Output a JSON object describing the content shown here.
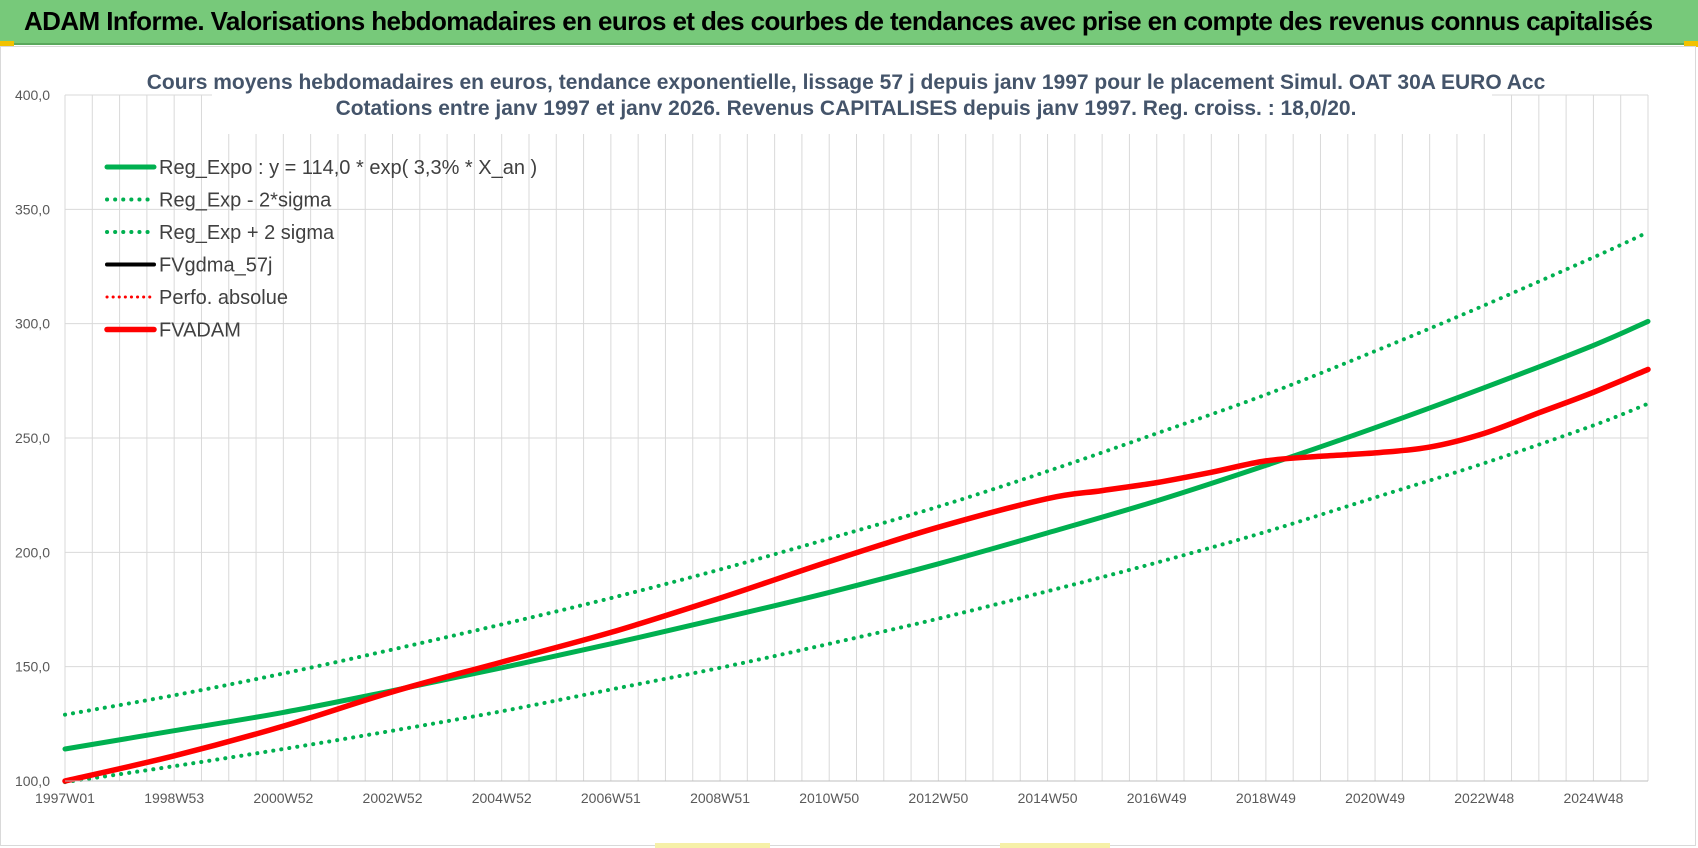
{
  "header": {
    "title": "ADAM Informe. Valorisations hebdomadaires en euros et des courbes de tendances avec prise en compte des revenus connus capitalisés"
  },
  "colors": {
    "banner": "#77c97a",
    "trend": "#00b050",
    "fvadam": "#ff0000",
    "fvgdma": "#000000",
    "grid": "#d9d9d9",
    "title_text": "#44546a"
  },
  "chart_data": {
    "type": "line",
    "title_line1": "Cours moyens hebdomadaires en euros, tendance exponentielle, lissage 57 j depuis janv 1997  pour le placement Simul. OAT 30A EURO Acc",
    "title_line2": "Cotations entre janv 1997 et janv 2026. Revenus  CAPITALISES depuis janv 1997. Reg. croiss. : 18,0/20.",
    "xlabel": "",
    "ylabel": "",
    "ylim": [
      100,
      400
    ],
    "xlim": [
      1997.0,
      2026.0
    ],
    "y_ticks": [
      "400,0",
      "350,0",
      "300,0",
      "250,0",
      "200,0",
      "150,0",
      "100,0"
    ],
    "y_tick_values": [
      400,
      350,
      300,
      250,
      200,
      150,
      100
    ],
    "x_ticks": [
      "1997W01",
      "1998W53",
      "2000W52",
      "2002W52",
      "2004W52",
      "2006W51",
      "2008W51",
      "2010W50",
      "2012W50",
      "2014W50",
      "2016W49",
      "2018W49",
      "2020W49",
      "2022W48",
      "2024W48"
    ],
    "x_tick_values": [
      1997.0,
      1999.0,
      2001.0,
      2003.0,
      2005.0,
      2007.0,
      2009.0,
      2011.0,
      2013.0,
      2015.0,
      2017.0,
      2019.0,
      2021.0,
      2023.0,
      2025.0
    ],
    "grid": true,
    "legend_position": "top-left",
    "series": [
      {
        "name": "Reg_Expo : y = 114,0 * exp( 3,3% *  X_an )",
        "style": "solid-green",
        "x": [
          1997,
          1999,
          2001,
          2003,
          2005,
          2007,
          2009,
          2011,
          2013,
          2015,
          2017,
          2019,
          2021,
          2023,
          2025,
          2026
        ],
        "values": [
          114,
          122,
          130,
          139.5,
          149.5,
          160,
          171,
          182.5,
          195,
          208.5,
          222.5,
          238,
          254.5,
          272,
          290.5,
          301
        ]
      },
      {
        "name": "Reg_Exp - 2*sigma",
        "style": "dotted-green",
        "x": [
          1997,
          1999,
          2001,
          2003,
          2005,
          2007,
          2009,
          2011,
          2013,
          2015,
          2017,
          2019,
          2021,
          2023,
          2025,
          2026
        ],
        "values": [
          99.5,
          106.5,
          114,
          122,
          130.5,
          140,
          149.5,
          160,
          171,
          183,
          195.5,
          209,
          224,
          239,
          255.5,
          265
        ]
      },
      {
        "name": "Reg_Exp + 2 sigma",
        "style": "dotted-green",
        "x": [
          1997,
          1999,
          2001,
          2003,
          2005,
          2007,
          2009,
          2011,
          2013,
          2015,
          2017,
          2019,
          2021,
          2023,
          2025,
          2026
        ],
        "values": [
          129,
          137.5,
          147,
          157.5,
          168.5,
          180,
          192.5,
          206,
          220,
          235.5,
          252,
          269,
          288,
          308,
          329,
          340
        ]
      },
      {
        "name": "FVgdma_57j",
        "style": "solid-black",
        "x": [],
        "values": []
      },
      {
        "name": "Perfo. absolue",
        "style": "dotted-red",
        "x": [],
        "values": []
      },
      {
        "name": "FVADAM",
        "style": "solid-red",
        "x": [
          1997,
          1999,
          2001,
          2003,
          2005,
          2007,
          2009,
          2011,
          2013,
          2015,
          2016,
          2017,
          2018,
          2019,
          2020,
          2021,
          2022,
          2023,
          2024,
          2025,
          2026
        ],
        "values": [
          100,
          111,
          124,
          139,
          152,
          165,
          180,
          196,
          211,
          223.5,
          227,
          230.5,
          235,
          240,
          242,
          243.5,
          246,
          252,
          261,
          270,
          280
        ]
      }
    ]
  }
}
